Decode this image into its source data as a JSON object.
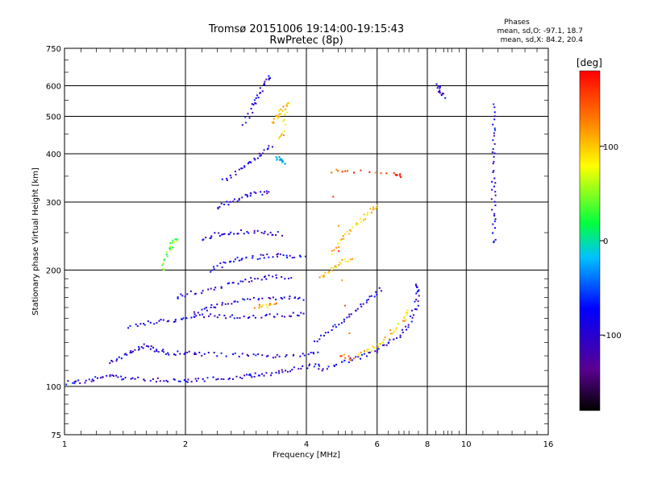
{
  "chart_data": {
    "type": "scatter",
    "title": "Tromsø 20151006 19:14:00-19:15:43",
    "subtitle": "RwPretec (8p)",
    "xlabel": "Frequency [MHz]",
    "ylabel": "Stationary phase Virtual Height [km]",
    "x_scale": "log",
    "y_scale": "log",
    "xlim": [
      1,
      16
    ],
    "ylim": [
      75,
      750
    ],
    "x_ticks": [
      1,
      2,
      4,
      6,
      8,
      10,
      16
    ],
    "y_ticks": [
      75,
      100,
      200,
      300,
      400,
      500,
      600,
      750
    ],
    "legend_title": "Phases",
    "legend_lines": [
      "mean, sd,O: -97.1, 18.7",
      "mean, sd,X:  84.2, 20.4"
    ],
    "colorbar": {
      "label": "[deg]",
      "range": [
        -180,
        180
      ],
      "ticks": [
        100,
        0,
        -100
      ],
      "colors": [
        "#000000",
        "#5a0090",
        "#0000ff",
        "#00c0ff",
        "#00ff40",
        "#ffff00",
        "#ff8000",
        "#ff0000"
      ]
    },
    "traces": [
      {
        "name": "",
        "phase": -100,
        "points": [
          [
            1.02,
            102
          ],
          [
            1.1,
            103
          ],
          [
            1.2,
            105
          ],
          [
            1.3,
            106
          ],
          [
            1.4,
            105
          ],
          [
            1.6,
            104
          ],
          [
            1.8,
            104
          ],
          [
            2.0,
            103
          ],
          [
            2.2,
            104
          ],
          [
            2.5,
            105
          ],
          [
            2.8,
            106
          ],
          [
            3.0,
            107
          ],
          [
            3.3,
            108
          ],
          [
            3.6,
            110
          ],
          [
            4.0,
            112
          ],
          [
            4.4,
            115
          ]
        ]
      },
      {
        "name": "",
        "phase": -100,
        "points": [
          [
            1.3,
            116
          ],
          [
            1.4,
            120
          ],
          [
            1.5,
            124
          ],
          [
            1.6,
            128
          ],
          [
            1.7,
            124
          ],
          [
            1.8,
            122
          ],
          [
            2.0,
            122
          ],
          [
            2.2,
            121
          ],
          [
            2.6,
            121
          ],
          [
            3.0,
            120
          ],
          [
            3.4,
            120
          ],
          [
            3.9,
            121
          ],
          [
            4.3,
            122
          ]
        ]
      },
      {
        "name": "",
        "phase": -100,
        "points": [
          [
            1.45,
            142
          ],
          [
            1.6,
            146
          ],
          [
            1.8,
            148
          ],
          [
            2.0,
            150
          ],
          [
            2.2,
            152
          ],
          [
            2.5,
            152
          ],
          [
            2.8,
            151
          ],
          [
            3.2,
            152
          ],
          [
            3.6,
            153
          ],
          [
            4.0,
            154
          ]
        ]
      },
      {
        "name": "",
        "phase": -100,
        "points": [
          [
            2.1,
            155
          ],
          [
            2.3,
            160
          ],
          [
            2.5,
            164
          ],
          [
            2.8,
            167
          ],
          [
            3.2,
            169
          ],
          [
            3.6,
            169
          ],
          [
            4.0,
            168
          ]
        ]
      },
      {
        "name": "",
        "phase": -100,
        "points": [
          [
            1.9,
            170
          ],
          [
            2.1,
            175
          ],
          [
            2.4,
            180
          ],
          [
            2.7,
            186
          ],
          [
            3.0,
            190
          ],
          [
            3.3,
            192
          ],
          [
            3.7,
            192
          ]
        ]
      },
      {
        "name": "",
        "phase": -100,
        "points": [
          [
            2.3,
            200
          ],
          [
            2.5,
            208
          ],
          [
            2.7,
            214
          ],
          [
            3.0,
            216
          ],
          [
            3.3,
            218
          ],
          [
            3.6,
            218
          ],
          [
            4.0,
            216
          ]
        ]
      },
      {
        "name": "",
        "phase": -100,
        "points": [
          [
            2.2,
            240
          ],
          [
            2.4,
            248
          ],
          [
            2.6,
            250
          ],
          [
            2.9,
            252
          ],
          [
            3.2,
            250
          ],
          [
            3.5,
            248
          ]
        ]
      },
      {
        "name": "",
        "phase": -100,
        "points": [
          [
            2.4,
            290
          ],
          [
            2.6,
            300
          ],
          [
            2.8,
            310
          ],
          [
            3.0,
            316
          ],
          [
            3.3,
            318
          ]
        ]
      },
      {
        "name": "",
        "phase": -100,
        "points": [
          [
            2.5,
            340
          ],
          [
            2.7,
            360
          ],
          [
            2.9,
            380
          ],
          [
            3.1,
            400
          ],
          [
            3.3,
            420
          ]
        ]
      },
      {
        "name": "",
        "phase": -100,
        "points": [
          [
            2.8,
            480
          ],
          [
            2.95,
            530
          ],
          [
            3.05,
            570
          ],
          [
            3.15,
            610
          ],
          [
            3.25,
            640
          ]
        ]
      },
      {
        "name": "",
        "phase": -100,
        "points": [
          [
            4.3,
            110
          ],
          [
            4.8,
            115
          ],
          [
            5.3,
            118
          ],
          [
            5.8,
            122
          ],
          [
            6.3,
            128
          ],
          [
            6.8,
            135
          ],
          [
            7.2,
            145
          ],
          [
            7.5,
            160
          ],
          [
            7.6,
            175
          ],
          [
            7.5,
            185
          ]
        ]
      },
      {
        "name": "",
        "phase": -100,
        "points": [
          [
            4.2,
            130
          ],
          [
            4.6,
            140
          ],
          [
            5.0,
            150
          ],
          [
            5.4,
            160
          ],
          [
            5.8,
            170
          ],
          [
            6.2,
            180
          ]
        ]
      },
      {
        "name": "",
        "phase": -100,
        "points": [
          [
            11.7,
            540
          ],
          [
            11.7,
            460
          ],
          [
            11.7,
            400
          ],
          [
            11.7,
            340
          ],
          [
            11.7,
            300
          ],
          [
            11.7,
            260
          ],
          [
            11.7,
            230
          ]
        ]
      },
      {
        "name": "",
        "phase": -100,
        "points": [
          [
            8.5,
            600
          ],
          [
            8.6,
            580
          ],
          [
            8.8,
            560
          ]
        ]
      },
      {
        "name": "",
        "phase": 100,
        "points": [
          [
            3.3,
            480
          ],
          [
            3.4,
            500
          ],
          [
            3.5,
            520
          ],
          [
            3.6,
            540
          ],
          [
            3.5,
            460
          ],
          [
            3.45,
            430
          ]
        ]
      },
      {
        "name": "",
        "phase": 100,
        "points": [
          [
            4.6,
            220
          ],
          [
            4.9,
            240
          ],
          [
            5.2,
            255
          ],
          [
            5.5,
            270
          ],
          [
            5.8,
            285
          ],
          [
            6.0,
            295
          ]
        ]
      },
      {
        "name": "",
        "phase": 100,
        "points": [
          [
            4.3,
            190
          ],
          [
            4.6,
            200
          ],
          [
            4.9,
            210
          ],
          [
            5.2,
            215
          ]
        ]
      },
      {
        "name": "",
        "phase": 100,
        "points": [
          [
            5.4,
            120
          ],
          [
            5.8,
            125
          ],
          [
            6.2,
            130
          ],
          [
            6.6,
            140
          ],
          [
            7.0,
            150
          ],
          [
            7.2,
            158
          ]
        ]
      },
      {
        "name": "",
        "phase": 110,
        "points": [
          [
            3.0,
            160
          ],
          [
            3.2,
            162
          ],
          [
            3.4,
            164
          ]
        ]
      },
      {
        "name": "",
        "phase": 40,
        "points": [
          [
            1.75,
            200
          ],
          [
            1.8,
            220
          ],
          [
            1.85,
            235
          ],
          [
            1.9,
            240
          ]
        ]
      },
      {
        "name": "",
        "phase": -20,
        "points": [
          [
            3.35,
            390
          ],
          [
            3.45,
            385
          ],
          [
            3.55,
            380
          ]
        ]
      },
      {
        "name": "",
        "phase": 150,
        "points": [
          [
            4.9,
            120
          ],
          [
            5.2,
            118
          ],
          [
            4.6,
            360
          ],
          [
            5.1,
            360
          ],
          [
            6.6,
            355
          ],
          [
            6.9,
            350
          ]
        ]
      }
    ]
  }
}
